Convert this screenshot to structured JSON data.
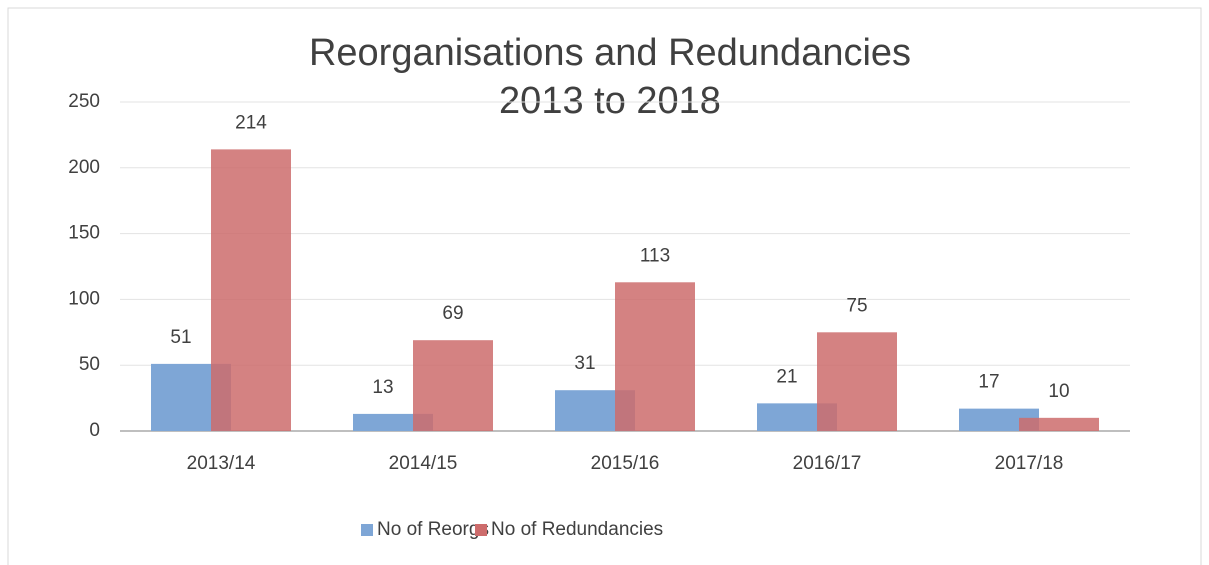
{
  "chart_data": {
    "type": "bar",
    "title": [
      "Reorganisations and Redundancies",
      "2013 to 2018"
    ],
    "categories": [
      "2013/14",
      "2014/15",
      "2015/16",
      "2016/17",
      "2017/18"
    ],
    "series": [
      {
        "name": "No of Reorgs",
        "color": "#7ea6d6",
        "values": [
          51,
          13,
          31,
          21,
          17
        ]
      },
      {
        "name": "No of Redundancies",
        "color": "#cd6c6c",
        "values": [
          214,
          69,
          113,
          75,
          10
        ]
      }
    ],
    "ylim": [
      0,
      250
    ],
    "yticks": [
      0,
      50,
      100,
      150,
      200,
      250
    ],
    "grid": true,
    "legend": "bottom"
  }
}
